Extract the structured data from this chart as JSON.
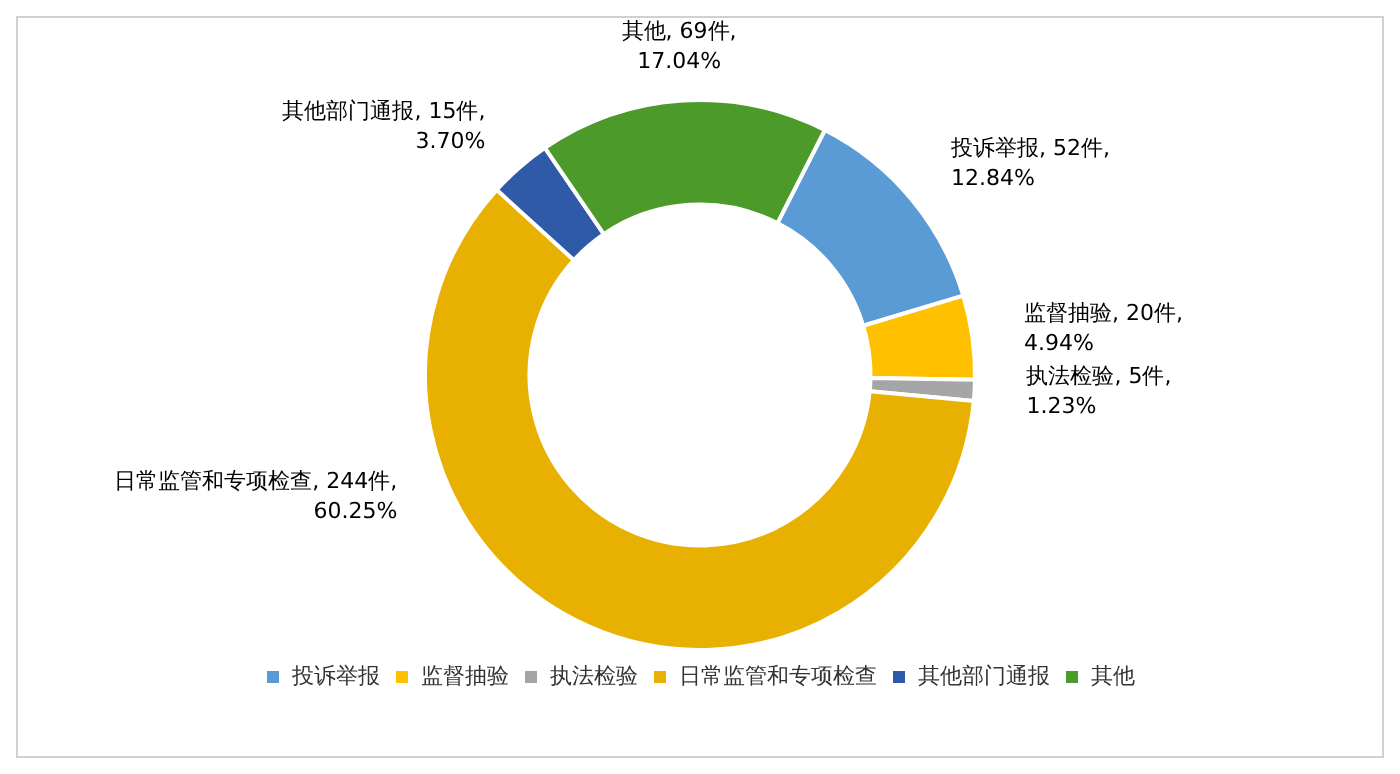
{
  "chart_data": {
    "type": "donut",
    "categories": [
      "投诉举报",
      "监督抽验",
      "执法检验",
      "日常监管和专项检查",
      "其他部门通报",
      "其他"
    ],
    "values": [
      52,
      20,
      5,
      244,
      15,
      69
    ],
    "colors": [
      "#5b9bd5",
      "#ffc000",
      "#a5a5a5",
      "#e8b000",
      "#2f5aa8",
      "#4c9a2a"
    ],
    "value_labels": [
      "投诉举报, 52件, 12.84%",
      "监督抽验, 20件, 4.94%",
      "执法检验, 5件, 1.23%",
      "日常监管和专项检查, 244件, 60.25%",
      "其他部门通报, 15件, 3.70%",
      "其他, 69件, 17.04%"
    ],
    "legend": "bottom"
  }
}
